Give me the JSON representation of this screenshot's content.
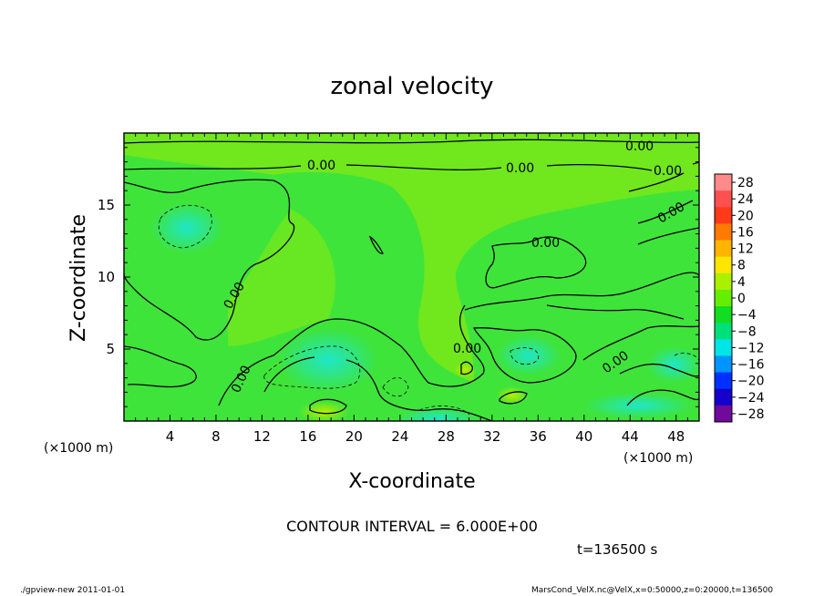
{
  "chart_data": {
    "type": "heatmap",
    "title": "zonal velocity",
    "xlabel": "X-coordinate",
    "ylabel": "Z-coordinate",
    "x_unit": "(×1000 m)",
    "y_unit": "(×1000 m)",
    "xlim": [
      0,
      50
    ],
    "ylim": [
      0,
      20
    ],
    "x_ticks": [
      4,
      8,
      12,
      16,
      20,
      24,
      28,
      32,
      36,
      40,
      44,
      48
    ],
    "y_ticks": [
      5,
      10,
      15
    ],
    "contour_label": "0.00",
    "contour_interval_text": "CONTOUR INTERVAL = 6.000E+00",
    "time_text": "t=136500 s",
    "colorbar": {
      "labels": [
        "28",
        "24",
        "20",
        "16",
        "12",
        "8",
        "4",
        "0",
        "−4",
        "−8",
        "−12",
        "−16",
        "−20",
        "−24",
        "−28"
      ],
      "levels": [
        28,
        24,
        20,
        16,
        12,
        8,
        4,
        0,
        -4,
        -8,
        -12,
        -16,
        -20,
        -24,
        -28
      ],
      "colors": [
        "#ff8a8a",
        "#ff5050",
        "#ff3a1a",
        "#ff7a00",
        "#ffb400",
        "#ffe600",
        "#aaf000",
        "#66ee00",
        "#11dd22",
        "#00e07a",
        "#00e6e6",
        "#0094ff",
        "#0030ff",
        "#1600cc",
        "#6f0a9a"
      ]
    }
  },
  "footer": {
    "left": "./gpview-new  2011-01-01",
    "right": "MarsCond_VelX.nc@VelX,x=0:50000,z=0:20000,t=136500"
  }
}
